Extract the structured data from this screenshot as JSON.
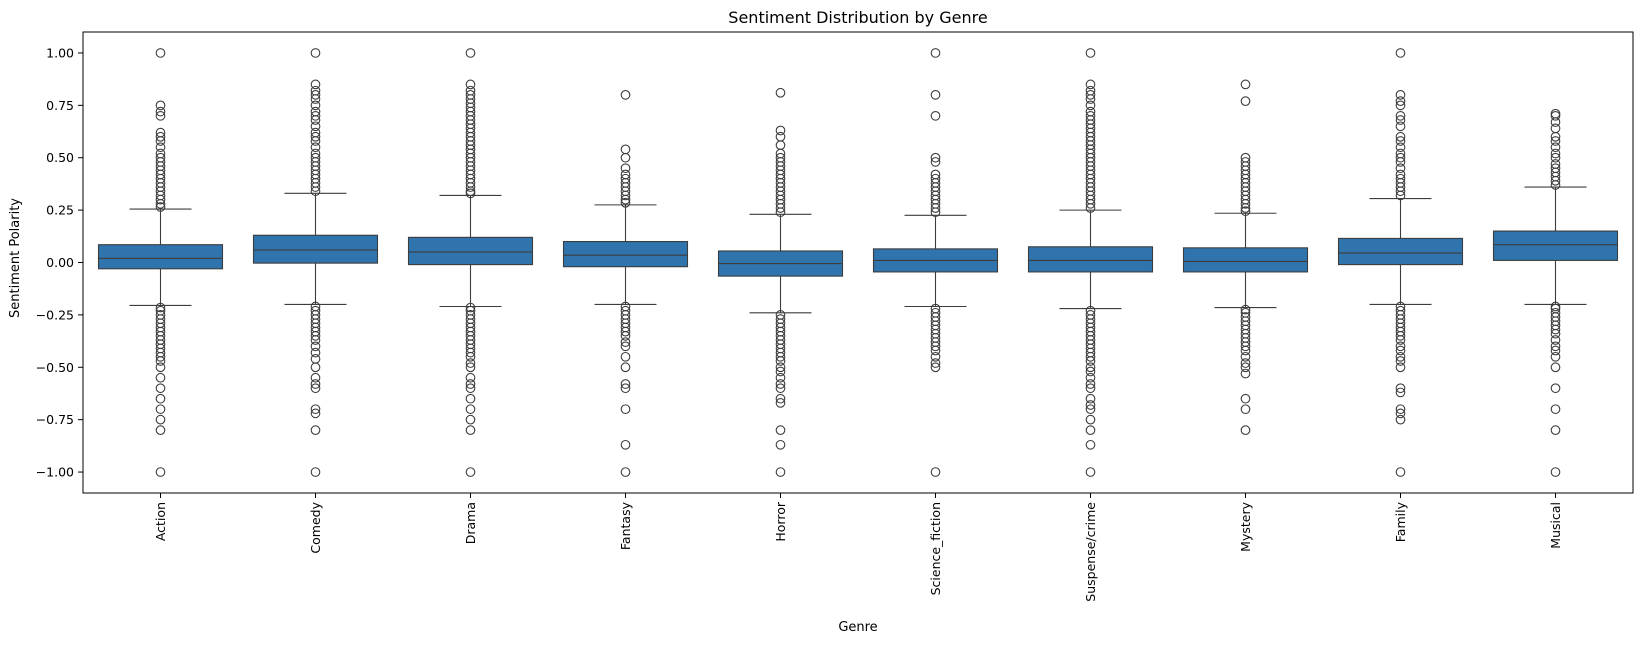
{
  "chart_data": {
    "type": "box",
    "title": "Sentiment Distribution by Genre",
    "xlabel": "Genre",
    "ylabel": "Sentiment Polarity",
    "ylim": [
      -1.1,
      1.1
    ],
    "yticks": [
      "1.00",
      "0.75",
      "0.50",
      "0.25",
      "0.00",
      "−0.25",
      "−0.50",
      "−0.75",
      "−1.00"
    ],
    "ytick_values": [
      1.0,
      0.75,
      0.5,
      0.25,
      0.0,
      -0.25,
      -0.5,
      -0.75,
      -1.0
    ],
    "box_color": "#2f74ad",
    "line_color": "#3d3d3d",
    "grid": false,
    "categories": [
      "Action",
      "Comedy",
      "Drama",
      "Fantasy",
      "Horror",
      "Science_fiction",
      "Suspense/crime",
      "Mystery",
      "Family",
      "Musical"
    ],
    "boxes": [
      {
        "q1": -0.03,
        "median": 0.02,
        "q3": 0.085,
        "whislo": -0.205,
        "whishi": 0.255,
        "fliers_high": [
          1.0,
          0.75,
          0.72,
          0.7,
          0.62,
          0.6,
          0.58,
          0.55,
          0.52,
          0.5,
          0.48,
          0.46,
          0.44,
          0.42,
          0.4,
          0.38,
          0.36,
          0.34,
          0.32,
          0.3,
          0.28,
          0.265
        ],
        "fliers_low": [
          -0.215,
          -0.23,
          -0.25,
          -0.27,
          -0.29,
          -0.31,
          -0.33,
          -0.35,
          -0.37,
          -0.39,
          -0.41,
          -0.43,
          -0.45,
          -0.47,
          -0.5,
          -0.55,
          -0.6,
          -0.65,
          -0.7,
          -0.75,
          -0.8,
          -1.0
        ]
      },
      {
        "q1": -0.003,
        "median": 0.06,
        "q3": 0.13,
        "whislo": -0.2,
        "whishi": 0.33,
        "fliers_high": [
          1.0,
          0.85,
          0.82,
          0.8,
          0.78,
          0.75,
          0.72,
          0.7,
          0.68,
          0.65,
          0.62,
          0.6,
          0.58,
          0.55,
          0.52,
          0.5,
          0.48,
          0.46,
          0.44,
          0.42,
          0.4,
          0.38,
          0.36,
          0.34
        ],
        "fliers_low": [
          -0.21,
          -0.23,
          -0.25,
          -0.27,
          -0.29,
          -0.31,
          -0.33,
          -0.35,
          -0.37,
          -0.4,
          -0.43,
          -0.46,
          -0.5,
          -0.55,
          -0.58,
          -0.6,
          -0.7,
          -0.72,
          -0.8,
          -1.0
        ]
      },
      {
        "q1": -0.01,
        "median": 0.05,
        "q3": 0.12,
        "whislo": -0.21,
        "whishi": 0.32,
        "fliers_high": [
          1.0,
          0.85,
          0.82,
          0.8,
          0.78,
          0.76,
          0.74,
          0.72,
          0.7,
          0.68,
          0.66,
          0.64,
          0.62,
          0.6,
          0.58,
          0.56,
          0.54,
          0.52,
          0.5,
          0.48,
          0.46,
          0.44,
          0.42,
          0.4,
          0.38,
          0.36,
          0.34,
          0.33
        ],
        "fliers_low": [
          -0.215,
          -0.23,
          -0.25,
          -0.27,
          -0.29,
          -0.31,
          -0.33,
          -0.35,
          -0.37,
          -0.39,
          -0.41,
          -0.43,
          -0.45,
          -0.48,
          -0.5,
          -0.55,
          -0.58,
          -0.6,
          -0.65,
          -0.7,
          -0.75,
          -0.8,
          -1.0
        ]
      },
      {
        "q1": -0.02,
        "median": 0.035,
        "q3": 0.1,
        "whislo": -0.2,
        "whishi": 0.275,
        "fliers_high": [
          0.8,
          0.54,
          0.5,
          0.45,
          0.42,
          0.4,
          0.38,
          0.36,
          0.34,
          0.32,
          0.3,
          0.285
        ],
        "fliers_low": [
          -0.21,
          -0.23,
          -0.25,
          -0.27,
          -0.29,
          -0.31,
          -0.33,
          -0.35,
          -0.38,
          -0.4,
          -0.45,
          -0.5,
          -0.58,
          -0.6,
          -0.7,
          -0.87,
          -1.0
        ]
      },
      {
        "q1": -0.065,
        "median": -0.005,
        "q3": 0.055,
        "whislo": -0.24,
        "whishi": 0.23,
        "fliers_high": [
          0.81,
          0.63,
          0.6,
          0.56,
          0.52,
          0.5,
          0.48,
          0.46,
          0.44,
          0.42,
          0.4,
          0.38,
          0.36,
          0.34,
          0.32,
          0.3,
          0.28,
          0.26,
          0.24
        ],
        "fliers_low": [
          -0.25,
          -0.27,
          -0.29,
          -0.31,
          -0.33,
          -0.35,
          -0.37,
          -0.39,
          -0.41,
          -0.43,
          -0.45,
          -0.47,
          -0.5,
          -0.52,
          -0.55,
          -0.58,
          -0.6,
          -0.65,
          -0.67,
          -0.8,
          -0.87,
          -1.0
        ]
      },
      {
        "q1": -0.045,
        "median": 0.01,
        "q3": 0.065,
        "whislo": -0.21,
        "whishi": 0.225,
        "fliers_high": [
          1.0,
          0.8,
          0.7,
          0.5,
          0.48,
          0.42,
          0.4,
          0.38,
          0.36,
          0.34,
          0.32,
          0.3,
          0.28,
          0.26,
          0.24
        ],
        "fliers_low": [
          -0.22,
          -0.24,
          -0.26,
          -0.28,
          -0.3,
          -0.32,
          -0.34,
          -0.36,
          -0.38,
          -0.4,
          -0.42,
          -0.45,
          -0.48,
          -0.5,
          -1.0
        ]
      },
      {
        "q1": -0.045,
        "median": 0.01,
        "q3": 0.075,
        "whislo": -0.22,
        "whishi": 0.25,
        "fliers_high": [
          1.0,
          0.85,
          0.82,
          0.8,
          0.78,
          0.75,
          0.72,
          0.7,
          0.68,
          0.66,
          0.64,
          0.62,
          0.6,
          0.58,
          0.56,
          0.54,
          0.52,
          0.5,
          0.48,
          0.46,
          0.44,
          0.42,
          0.4,
          0.38,
          0.36,
          0.34,
          0.32,
          0.3,
          0.28,
          0.26
        ],
        "fliers_low": [
          -0.23,
          -0.25,
          -0.27,
          -0.29,
          -0.31,
          -0.33,
          -0.35,
          -0.37,
          -0.39,
          -0.41,
          -0.43,
          -0.45,
          -0.47,
          -0.5,
          -0.52,
          -0.55,
          -0.58,
          -0.6,
          -0.65,
          -0.68,
          -0.7,
          -0.75,
          -0.8,
          -0.87,
          -1.0
        ]
      },
      {
        "q1": -0.045,
        "median": 0.005,
        "q3": 0.07,
        "whislo": -0.215,
        "whishi": 0.235,
        "fliers_high": [
          0.85,
          0.77,
          0.5,
          0.48,
          0.46,
          0.44,
          0.42,
          0.4,
          0.38,
          0.36,
          0.34,
          0.32,
          0.3,
          0.28,
          0.26,
          0.245
        ],
        "fliers_low": [
          -0.225,
          -0.24,
          -0.26,
          -0.28,
          -0.3,
          -0.32,
          -0.34,
          -0.36,
          -0.38,
          -0.4,
          -0.42,
          -0.45,
          -0.48,
          -0.5,
          -0.53,
          -0.65,
          -0.7,
          -0.8
        ]
      },
      {
        "q1": -0.01,
        "median": 0.045,
        "q3": 0.115,
        "whislo": -0.2,
        "whishi": 0.305,
        "fliers_high": [
          1.0,
          0.8,
          0.77,
          0.75,
          0.7,
          0.68,
          0.65,
          0.6,
          0.58,
          0.55,
          0.52,
          0.5,
          0.48,
          0.45,
          0.42,
          0.4,
          0.38,
          0.36,
          0.34,
          0.32
        ],
        "fliers_low": [
          -0.21,
          -0.23,
          -0.25,
          -0.27,
          -0.29,
          -0.31,
          -0.33,
          -0.35,
          -0.37,
          -0.4,
          -0.42,
          -0.45,
          -0.47,
          -0.5,
          -0.6,
          -0.62,
          -0.7,
          -0.72,
          -0.75,
          -1.0
        ]
      },
      {
        "q1": 0.01,
        "median": 0.085,
        "q3": 0.15,
        "whislo": -0.2,
        "whishi": 0.36,
        "fliers_high": [
          0.71,
          0.7,
          0.67,
          0.64,
          0.6,
          0.58,
          0.55,
          0.52,
          0.5,
          0.47,
          0.45,
          0.43,
          0.41,
          0.39,
          0.37
        ],
        "fliers_low": [
          -0.21,
          -0.22,
          -0.24,
          -0.26,
          -0.28,
          -0.3,
          -0.32,
          -0.34,
          -0.37,
          -0.4,
          -0.42,
          -0.45,
          -0.5,
          -0.6,
          -0.7,
          -0.8,
          -1.0
        ]
      }
    ]
  }
}
